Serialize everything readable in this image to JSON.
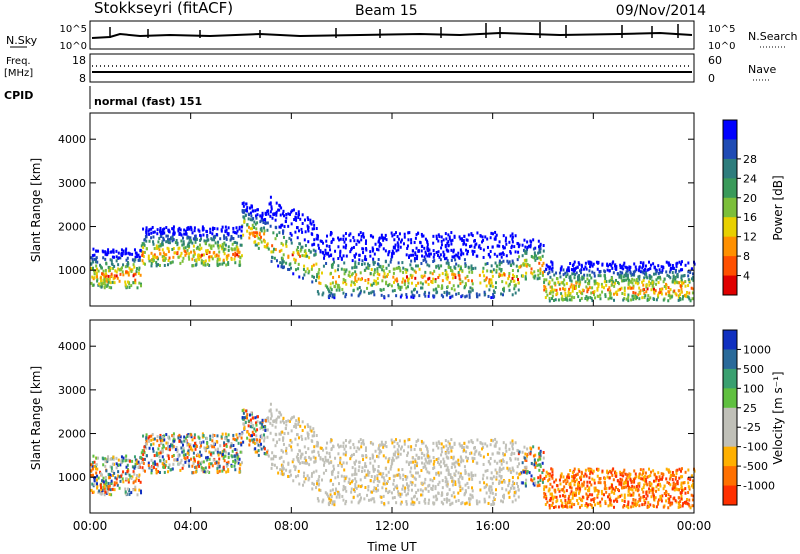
{
  "header": {
    "station": "Stokkseyri (fitACF)",
    "beam": "Beam 15",
    "date": "09/Nov/2014"
  },
  "strips": {
    "nsky_label": "N.Sky",
    "nsky_ticks": [
      "10^5",
      "10^0"
    ],
    "nsearch_label": "N.Search",
    "nsearch_ticks": [
      "10^5",
      "10^0"
    ],
    "freq_label_line1": "Freq.",
    "freq_label_line2": "[MHz]",
    "freq_ticks": [
      "18",
      "8"
    ],
    "nave_label": "Nave",
    "nave_ticks": [
      "60",
      "0"
    ],
    "cpid_label": "CPID",
    "cpid_text": "normal (fast) 151"
  },
  "chart_data": [
    {
      "type": "heatmap",
      "name": "power",
      "ylabel": "Slant Range [km]",
      "xlabel": "Time UT",
      "x_ticks": [
        "00:00",
        "04:00",
        "08:00",
        "12:00",
        "16:00",
        "20:00",
        "00:00"
      ],
      "x_range_hours": [
        0,
        24
      ],
      "y_ticks": [
        1000,
        2000,
        3000,
        4000
      ],
      "y_range_km": [
        180,
        4600
      ],
      "colorbar_label": "Power [dB]",
      "colorbar_ticks": [
        "4",
        "8",
        "12",
        "16",
        "20",
        "24",
        "28"
      ],
      "colorbar_colors": [
        "#0000ff",
        "#1f4bb4",
        "#2e7d7d",
        "#3a9a5a",
        "#7cbf3a",
        "#e8d000",
        "#ff9000",
        "#ff5000",
        "#e00000"
      ]
    },
    {
      "type": "heatmap",
      "name": "velocity",
      "ylabel": "Slant Range [km]",
      "xlabel": "Time UT",
      "x_ticks": [
        "00:00",
        "04:00",
        "08:00",
        "12:00",
        "16:00",
        "20:00",
        "00:00"
      ],
      "x_range_hours": [
        0,
        24
      ],
      "y_ticks": [
        1000,
        2000,
        3000,
        4000
      ],
      "y_range_km": [
        180,
        4600
      ],
      "colorbar_label": "Velocity [m s⁻¹]",
      "colorbar_ticks": [
        "1000",
        "500",
        "100",
        "25",
        "-25",
        "-100",
        "-500",
        "-1000"
      ],
      "colorbar_colors": [
        "#1030c0",
        "#2a6a9a",
        "#3aa070",
        "#60c040",
        "#c0c0b8",
        "#c0c0b8",
        "#ffb000",
        "#ff7000",
        "#ff3000"
      ]
    }
  ],
  "colors": {
    "ground_scatter": "#c0c0b8",
    "axis": "#000000"
  }
}
